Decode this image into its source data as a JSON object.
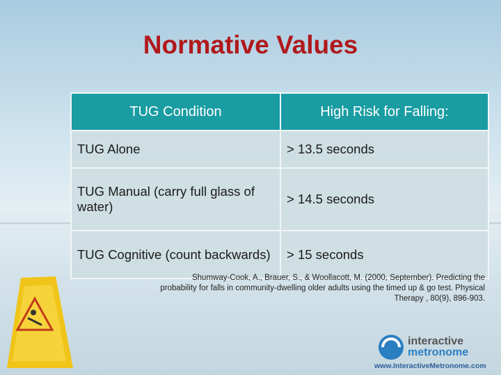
{
  "header": {
    "title": "Normative Values"
  },
  "table": {
    "columns": [
      "TUG Condition",
      "High Risk for Falling:"
    ],
    "rows": [
      [
        "TUG Alone",
        "> 13.5 seconds"
      ],
      [
        "TUG Manual (carry full glass of water)",
        "> 14.5 seconds"
      ],
      [
        "TUG Cognitive (count backwards)",
        "> 15 seconds"
      ]
    ]
  },
  "citation": {
    "lines": [
      "Shumway-Cook, A., Brauer, S., & Woollacott, M. (2000, September). Predicting the",
      "probability for falls in community-dwelling older adults using the timed up & go test. Physical",
      "Therapy , 80(9), 896-903."
    ]
  },
  "logo": {
    "word1": "interactive",
    "word2": "metronome",
    "url": "www.InteractiveMetronome.com"
  }
}
